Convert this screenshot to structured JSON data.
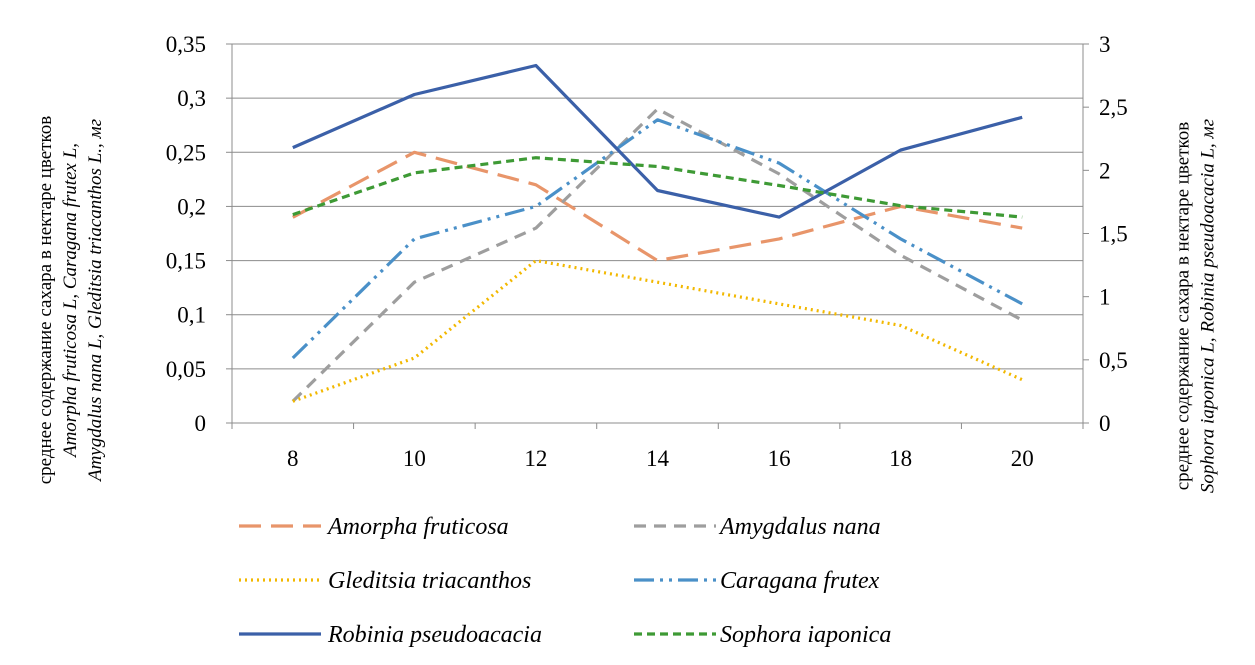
{
  "chart_data": {
    "type": "line",
    "x": [
      8,
      10,
      12,
      14,
      16,
      18,
      20
    ],
    "xticks": [
      "8",
      "10",
      "12",
      "14",
      "16",
      "18",
      "20"
    ],
    "y_left": {
      "ticks": [
        "0",
        "0,05",
        "0,1",
        "0,15",
        "0,2",
        "0,25",
        "0,3",
        "0,35"
      ],
      "ylim": [
        0,
        0.35
      ],
      "label_lines": [
        "среднее содержание сахара в нектаре цветков",
        "Amorpha fruticosa L, Caragana frutex L,",
        "Amygdalus nana L, Gleditsia triacanthos L., мг"
      ]
    },
    "y_right": {
      "ticks": [
        "0",
        "0,5",
        "1",
        "1,5",
        "2",
        "2,5",
        "3"
      ],
      "ylim": [
        0,
        3
      ],
      "label_lines": [
        "среднее содержание сахара в нектаре цветков",
        "Sophora iaponica L, Robinia pseudoacacia L, мг"
      ]
    },
    "grid": true,
    "legend_position": "bottom",
    "series": [
      {
        "name": "Amorpha fruticosa",
        "axis": "left",
        "color": "#E8956A",
        "dash": "long-dash",
        "values": [
          0.19,
          0.25,
          0.22,
          0.15,
          0.17,
          0.2,
          0.18
        ]
      },
      {
        "name": "Amygdalus nana",
        "axis": "left",
        "color": "#9E9E9E",
        "dash": "dash",
        "values": [
          0.02,
          0.13,
          0.18,
          0.29,
          0.23,
          0.155,
          0.095
        ]
      },
      {
        "name": "Gleditsia triacanthos",
        "axis": "left",
        "color": "#F2B800",
        "dash": "dot",
        "values": [
          0.02,
          0.06,
          0.15,
          0.13,
          0.11,
          0.09,
          0.04
        ]
      },
      {
        "name": "Caragana frutex",
        "axis": "left",
        "color": "#4A90C8",
        "dash": "dash-dot-dot",
        "values": [
          0.06,
          0.17,
          0.2,
          0.28,
          0.24,
          0.17,
          0.11
        ]
      },
      {
        "name": "Robinia pseudoacacia",
        "axis": "right",
        "color": "#3B60A8",
        "dash": "solid",
        "values": [
          2.18,
          2.6,
          2.83,
          1.84,
          1.63,
          2.16,
          2.42
        ]
      },
      {
        "name": "Sophora iaponica",
        "axis": "right",
        "color": "#3E9A35",
        "dash": "short-dash",
        "values": [
          1.65,
          1.98,
          2.1,
          2.03,
          1.88,
          1.72,
          1.63
        ]
      }
    ]
  }
}
